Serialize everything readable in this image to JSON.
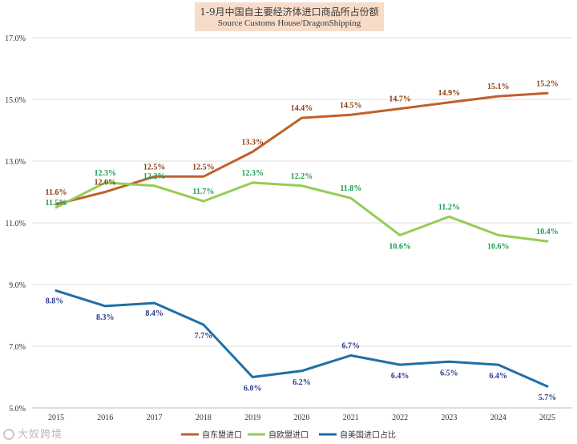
{
  "chart_data": {
    "type": "line",
    "title": "1-9月中国自主要经济体进口商品所占份额",
    "subtitle": "Source Customs House/DragonShipping",
    "categories": [
      "2015",
      "2016",
      "2017",
      "2018",
      "2019",
      "2020",
      "2021",
      "2022",
      "2023",
      "2024",
      "2025"
    ],
    "ylim": [
      5.0,
      17.0
    ],
    "yticks": [
      "5.0%",
      "7.0%",
      "9.0%",
      "11.0%",
      "13.0%",
      "15.0%",
      "17.0%"
    ],
    "grid": true,
    "legend_position": "bottom",
    "series": [
      {
        "name": "自东盟进口",
        "color": "#c0612a",
        "label_color": "#8a3d10",
        "values": [
          11.6,
          12.0,
          12.5,
          12.5,
          13.3,
          14.4,
          14.5,
          14.7,
          14.9,
          15.1,
          15.2
        ],
        "labels": [
          "11.6%",
          "12.0%",
          "12.5%",
          "12.5%",
          "13.3%",
          "14.4%",
          "14.5%",
          "14.7%",
          "14.9%",
          "15.1%",
          "15.2%"
        ]
      },
      {
        "name": "自欧盟进口",
        "color": "#93cd55",
        "label_color": "#1e9a52",
        "values": [
          11.5,
          12.3,
          12.2,
          11.7,
          12.3,
          12.2,
          11.8,
          10.6,
          11.2,
          10.6,
          10.4
        ],
        "labels": [
          "11.5%",
          "12.3%",
          "12.2%",
          "11.7%",
          "12.3%",
          "12.2%",
          "11.8%",
          "10.6%",
          "11.2%",
          "10.6%",
          "10.4%"
        ]
      },
      {
        "name": "自美国进口占比",
        "color": "#1f6fa7",
        "label_color": "#253a8a",
        "values": [
          8.8,
          8.3,
          8.4,
          7.7,
          6.0,
          6.2,
          6.7,
          6.4,
          6.5,
          6.4,
          5.7
        ],
        "labels": [
          "8.8%",
          "8.3%",
          "8.4%",
          "7.7%",
          "6.0%",
          "6.2%",
          "6.7%",
          "6.4%",
          "6.5%",
          "6.4%",
          "5.7%"
        ]
      }
    ]
  },
  "watermark": {
    "text": "大奴跨境"
  }
}
